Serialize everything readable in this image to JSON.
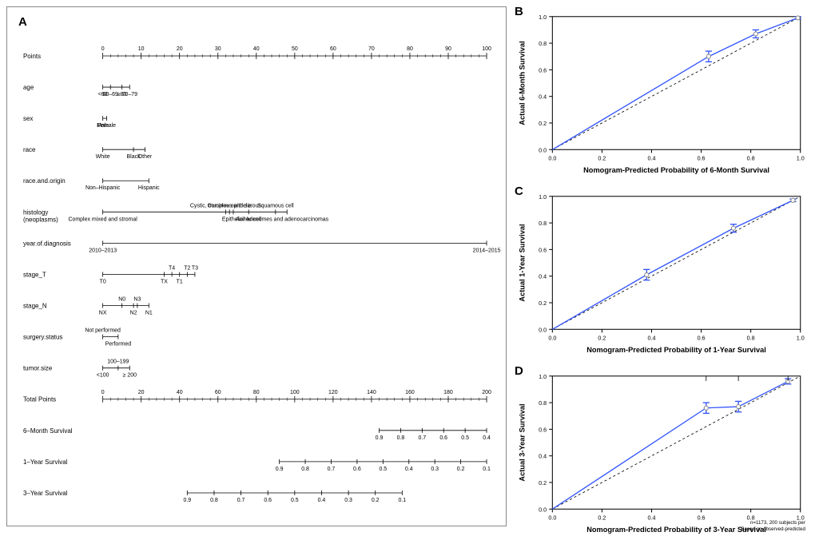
{
  "panelA": {
    "label": "A",
    "points_scale": {
      "min": 0,
      "max": 100,
      "step": 10
    },
    "rows": [
      {
        "name": "Points",
        "type": "axis",
        "ticks": [
          0,
          10,
          20,
          30,
          40,
          50,
          60,
          70,
          80,
          90,
          100
        ]
      },
      {
        "name": "age",
        "type": "cat",
        "items": [
          {
            "label": "<60",
            "pos": 0
          },
          {
            "label": "60–69",
            "pos": 2
          },
          {
            "label": "≥80",
            "pos": 5
          },
          {
            "label": "70–79",
            "pos": 7
          }
        ],
        "axis_end": 7
      },
      {
        "name": "sex",
        "type": "cat",
        "items": [
          {
            "label": "Female",
            "pos": 1
          },
          {
            "label": "Male",
            "pos": 0
          }
        ],
        "axis_end": 1
      },
      {
        "name": "race",
        "type": "cat",
        "items": [
          {
            "label": "White",
            "pos": 0
          },
          {
            "label": "Black",
            "pos": 8
          },
          {
            "label": "Other",
            "pos": 11
          }
        ],
        "axis_end": 11
      },
      {
        "name": "race.and.origin",
        "type": "cat",
        "items": [
          {
            "label": "Non–Hispanic",
            "pos": 0
          },
          {
            "label": "Hispanic",
            "pos": 12
          }
        ],
        "axis_end": 12
      },
      {
        "name": "histology\n(neoplasms)",
        "type": "cat",
        "items": [
          {
            "label": "Complex mixed and stromal",
            "pos": 0
          },
          {
            "label": "Complex epithelia",
            "pos": 33,
            "above": true
          },
          {
            "label": "Cystic, mucinous and serous",
            "pos": 32,
            "above": true
          },
          {
            "label": "Epithelial",
            "pos": 34
          },
          {
            "label": "Acinar cell",
            "pos": 38
          },
          {
            "label": "Squamous cell",
            "pos": 45,
            "above": true
          },
          {
            "label": "Adenomes and adenocarcinomas",
            "pos": 48
          }
        ],
        "axis_end": 48
      },
      {
        "name": "year.of.diagnosis",
        "type": "cat",
        "items": [
          {
            "label": "2010–2013",
            "pos": 0
          },
          {
            "label": "2014–2015",
            "pos": 100
          }
        ],
        "axis_end": 100
      },
      {
        "name": "stage_T",
        "type": "cat",
        "items": [
          {
            "label": "T0",
            "pos": 0
          },
          {
            "label": "TX",
            "pos": 16
          },
          {
            "label": "T4",
            "pos": 18,
            "above": true
          },
          {
            "label": "T1",
            "pos": 20
          },
          {
            "label": "T2",
            "pos": 22,
            "above": true
          },
          {
            "label": "T3",
            "pos": 24,
            "above": true
          }
        ],
        "axis_end": 24
      },
      {
        "name": "stage_N",
        "type": "cat",
        "items": [
          {
            "label": "NX",
            "pos": 0
          },
          {
            "label": "N0",
            "pos": 5,
            "above": true
          },
          {
            "label": "N2",
            "pos": 8
          },
          {
            "label": "N3",
            "pos": 9,
            "above": true
          },
          {
            "label": "N1",
            "pos": 12
          }
        ],
        "axis_end": 12
      },
      {
        "name": "surgery.status",
        "type": "cat",
        "items": [
          {
            "label": "Not performed",
            "pos": 0,
            "above": true
          },
          {
            "label": "Performed",
            "pos": 4
          }
        ],
        "axis_end": 4
      },
      {
        "name": "tumor.size",
        "type": "cat",
        "items": [
          {
            "label": "<100",
            "pos": 0
          },
          {
            "label": "100–199",
            "pos": 4,
            "above": true
          },
          {
            "label": "≥ 200",
            "pos": 7
          }
        ],
        "axis_end": 7
      },
      {
        "name": "Total Points",
        "type": "axis",
        "ticks": [
          0,
          20,
          40,
          60,
          80,
          100,
          120,
          140,
          160,
          180,
          200
        ]
      },
      {
        "name": "6–Month Survival",
        "type": "surv",
        "labels": [
          "0.9",
          "0.8",
          "0.7",
          "0.6",
          "0.5",
          "0.4"
        ],
        "start": 72,
        "end": 100
      },
      {
        "name": "1–Year Survival",
        "type": "surv",
        "labels": [
          "0.9",
          "0.8",
          "0.7",
          "0.6",
          "0.5",
          "0.4",
          "0.3",
          "0.2",
          "0.1"
        ],
        "start": 46,
        "end": 100
      },
      {
        "name": "3–Year Survival",
        "type": "surv",
        "labels": [
          "0.9",
          "0.8",
          "0.7",
          "0.6",
          "0.5",
          "0.4",
          "0.3",
          "0.2",
          "0.1"
        ],
        "start": 22,
        "end": 78
      }
    ],
    "font": {
      "label_size": 8,
      "tick_size": 7
    },
    "colors": {
      "line": "#000000",
      "text": "#000000",
      "bg": "#ffffff"
    }
  },
  "calibration_common": {
    "xlim": [
      0,
      1
    ],
    "ylim": [
      0,
      1
    ],
    "ticks": [
      0.0,
      0.2,
      0.4,
      0.6,
      0.8,
      1.0
    ],
    "ref_line_color": "#000000",
    "ref_line_dash": "3,3",
    "line_color": "#3355ff",
    "err_color": "#3355ff",
    "marker_color": "#888888",
    "axis_color": "#000000",
    "label_fontsize": 9,
    "tick_fontsize": 7
  },
  "panelB": {
    "label": "B",
    "xlabel": "Nomogram-Predicted Probability of 6-Month Survival",
    "ylabel": "Actual 6-Month Survival",
    "points": [
      {
        "x": 0.63,
        "y": 0.7,
        "lo": 0.66,
        "hi": 0.74
      },
      {
        "x": 0.82,
        "y": 0.87,
        "lo": 0.84,
        "hi": 0.9
      },
      {
        "x": 0.99,
        "y": 0.99,
        "lo": 0.98,
        "hi": 1.0
      }
    ]
  },
  "panelC": {
    "label": "C",
    "xlabel": "Nomogram-Predicted Probability of 1-Year Survival",
    "ylabel": "Actual 1-Year Survival",
    "points": [
      {
        "x": 0.38,
        "y": 0.41,
        "lo": 0.37,
        "hi": 0.45
      },
      {
        "x": 0.73,
        "y": 0.76,
        "lo": 0.73,
        "hi": 0.79
      },
      {
        "x": 0.97,
        "y": 0.97,
        "lo": 0.96,
        "hi": 0.98
      }
    ]
  },
  "panelD": {
    "label": "D",
    "xlabel": "Nomogram-Predicted Probability of 3-Year Survival",
    "ylabel": "Actual 3-Year Survival",
    "footnote": "n=1173, 200 subjects per\nBased on observed-predicted",
    "points": [
      {
        "x": 0.62,
        "y": 0.76,
        "lo": 0.72,
        "hi": 0.8
      },
      {
        "x": 0.75,
        "y": 0.77,
        "lo": 0.73,
        "hi": 0.81
      },
      {
        "x": 0.95,
        "y": 0.96,
        "lo": 0.94,
        "hi": 0.98
      }
    ],
    "rug_top": [
      0.95,
      0.62,
      0.75
    ]
  }
}
